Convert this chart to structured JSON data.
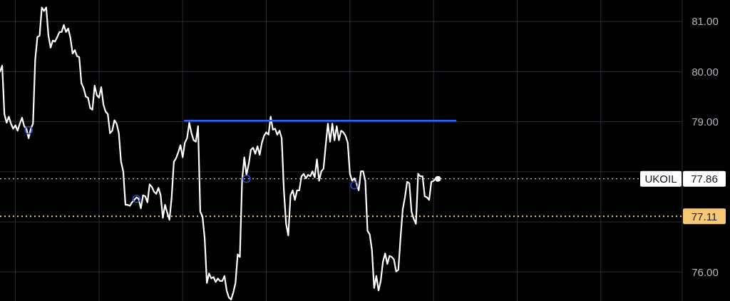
{
  "chart_data": {
    "type": "line",
    "categories": [
      null,
      null,
      null,
      null,
      null,
      null,
      null,
      null,
      null,
      null,
      null,
      null,
      null,
      null,
      null,
      null,
      null,
      null,
      null,
      null,
      null,
      null,
      null,
      null,
      null,
      null,
      null,
      null,
      null,
      null,
      null,
      null,
      null,
      null,
      null,
      null,
      null,
      null,
      null,
      null,
      null,
      null,
      null,
      null,
      null,
      null,
      null,
      null,
      null,
      null,
      null,
      null,
      null,
      null,
      null,
      null,
      null,
      null,
      null,
      null,
      null,
      null,
      null,
      null,
      null,
      null,
      null,
      null,
      null,
      null,
      null,
      null,
      null,
      null,
      null,
      null,
      null,
      null,
      null,
      null,
      null,
      null,
      null,
      null,
      null,
      null,
      null,
      null,
      null,
      null,
      null,
      null,
      null,
      null,
      null,
      null,
      null,
      null,
      null,
      null,
      null,
      null,
      null,
      null,
      null,
      null,
      null,
      null,
      null,
      null,
      null,
      null,
      null,
      null,
      null,
      null,
      null,
      null,
      null,
      null,
      null,
      null,
      null,
      null,
      null,
      null,
      null,
      null,
      null,
      null,
      null,
      null,
      null,
      null,
      null,
      null,
      null,
      null,
      null,
      null,
      null,
      null,
      null,
      null,
      null,
      null,
      null,
      null,
      null,
      null,
      null,
      null,
      null,
      null,
      null,
      null,
      null,
      null,
      null,
      null,
      null,
      null,
      null,
      null,
      null,
      null,
      null,
      null,
      null,
      null,
      null,
      null,
      null,
      null,
      null,
      null,
      null,
      null,
      null,
      null,
      null,
      null,
      null,
      null,
      null,
      null,
      null,
      null,
      null,
      null,
      null,
      null,
      null,
      null,
      null,
      null,
      null,
      null,
      null,
      null,
      null,
      null,
      null,
      null,
      null,
      null,
      null,
      null,
      null,
      null,
      null,
      null,
      null,
      null,
      null,
      null,
      null,
      null,
      null,
      null,
      null,
      null,
      null,
      null,
      null,
      null,
      null,
      null,
      null,
      null,
      null,
      null,
      null,
      null,
      null,
      null,
      null,
      null,
      null,
      null,
      null,
      null,
      null,
      null,
      null,
      null,
      null,
      null,
      null,
      null,
      null,
      null,
      null,
      null,
      null,
      null,
      null,
      null,
      null,
      null,
      null,
      null,
      null,
      null,
      null,
      null,
      null,
      null,
      null,
      null,
      null,
      null,
      null,
      null,
      null,
      null,
      null,
      null,
      null,
      null,
      null,
      null,
      null,
      null,
      null,
      null,
      null,
      null,
      null,
      null,
      null,
      null,
      null,
      null,
      null,
      null,
      null,
      null,
      null,
      null,
      null,
      null,
      null,
      null,
      null,
      null,
      null,
      null,
      null,
      null,
      null
    ],
    "ylim": [
      75.42,
      81.43
    ],
    "yticks": [
      {
        "value": 76,
        "label": "76.00"
      },
      {
        "value": 77,
        "label": null
      },
      {
        "value": 78,
        "label": null
      },
      {
        "value": 79,
        "label": "79.00"
      },
      {
        "value": 80,
        "label": "80.00"
      },
      {
        "value": 81,
        "label": "81.00"
      }
    ],
    "tick_labels": "y",
    "grid": true,
    "series": [
      {
        "type": "line",
        "color": "#ffffff",
        "marker": "none",
        "line_style": "solid",
        "values": [
          80.0,
          80.12,
          79.15,
          78.98,
          79.1,
          78.96,
          78.86,
          78.93,
          78.82,
          78.96,
          79.08,
          78.91,
          78.86,
          78.67,
          78.86,
          78.96,
          80.24,
          80.69,
          80.72,
          81.28,
          81.21,
          81.28,
          80.72,
          80.48,
          80.62,
          80.6,
          80.69,
          80.79,
          80.79,
          80.93,
          80.79,
          80.86,
          80.67,
          80.36,
          80.43,
          80.31,
          80.29,
          79.77,
          79.67,
          79.5,
          79.48,
          79.27,
          79.24,
          79.72,
          79.53,
          79.48,
          79.69,
          79.34,
          79.2,
          79.15,
          78.77,
          78.82,
          79.03,
          78.96,
          78.77,
          78.2,
          78.01,
          77.34,
          77.34,
          77.32,
          77.39,
          77.44,
          77.49,
          77.46,
          77.27,
          77.53,
          77.51,
          77.39,
          77.75,
          77.7,
          77.6,
          77.56,
          77.68,
          77.53,
          77.08,
          77.34,
          77.18,
          77.04,
          77.49,
          78.2,
          78.27,
          78.39,
          78.53,
          78.29,
          78.58,
          78.67,
          78.98,
          78.77,
          78.63,
          78.6,
          78.91,
          77.2,
          77.11,
          76.68,
          75.78,
          75.97,
          75.87,
          75.9,
          75.8,
          75.87,
          75.82,
          75.82,
          75.92,
          75.63,
          75.49,
          75.45,
          75.59,
          75.78,
          76.35,
          76.3,
          77.82,
          78.29,
          77.94,
          78.15,
          78.44,
          78.48,
          78.36,
          78.51,
          78.34,
          78.58,
          78.72,
          78.79,
          78.74,
          79.1,
          78.84,
          78.86,
          78.74,
          78.82,
          78.67,
          77.63,
          76.96,
          76.73,
          77.53,
          77.63,
          77.44,
          77.63,
          77.63,
          77.91,
          77.96,
          77.87,
          77.94,
          77.91,
          78.01,
          77.89,
          78.25,
          77.82,
          78.01,
          78.06,
          78.53,
          78.96,
          78.6,
          78.96,
          78.63,
          78.91,
          78.63,
          78.82,
          78.79,
          78.72,
          78.58,
          77.96,
          77.82,
          77.87,
          77.77,
          77.63,
          78.01,
          78.01,
          77.82,
          76.82,
          76.75,
          76.44,
          75.68,
          75.92,
          75.63,
          75.82,
          76.2,
          76.37,
          76.16,
          76.32,
          76.3,
          76.25,
          76.01,
          76.04,
          76.68,
          77.25,
          77.49,
          77.8,
          77.77,
          77.2,
          77.06,
          76.96,
          77.96,
          77.91,
          77.91,
          77.51,
          77.49,
          77.44,
          77.8,
          77.82,
          77.87,
          77.86,
          null,
          null,
          null,
          null,
          null,
          null,
          null,
          null,
          null,
          null,
          null,
          null,
          null,
          null,
          null,
          null,
          null,
          null,
          null,
          null,
          null,
          null,
          null,
          null,
          null,
          null,
          null,
          null,
          null,
          null,
          null,
          null,
          null,
          null,
          null,
          null,
          null,
          null,
          null,
          null,
          null,
          null,
          null,
          null,
          null,
          null,
          null,
          null,
          null,
          null,
          null,
          null,
          null,
          null,
          null,
          null,
          null,
          null,
          null,
          null,
          null,
          null,
          null,
          null,
          null,
          null,
          null,
          null,
          null,
          null,
          null,
          null,
          null,
          null,
          null,
          null,
          null,
          null,
          null,
          null,
          null,
          null,
          null,
          null,
          null,
          null,
          null,
          null,
          null,
          null,
          null,
          null,
          null,
          null,
          null,
          null,
          null,
          null,
          null,
          null,
          null,
          null,
          null,
          null,
          null,
          null,
          null,
          null,
          null,
          null,
          null
        ]
      },
      {
        "type": "scatter",
        "color": "#2f4fe0",
        "marker": "circle",
        "values": [
          null,
          null,
          null,
          null,
          null,
          null,
          null,
          null,
          null,
          null,
          null,
          null,
          null,
          78.83,
          null,
          null,
          null,
          null,
          null,
          null,
          null,
          null,
          null,
          null,
          null,
          null,
          null,
          null,
          null,
          null,
          null,
          null,
          null,
          null,
          null,
          null,
          null,
          null,
          null,
          null,
          null,
          null,
          null,
          null,
          null,
          null,
          null,
          null,
          null,
          null,
          null,
          null,
          null,
          null,
          null,
          null,
          null,
          null,
          null,
          null,
          null,
          null,
          77.46,
          null,
          null,
          null,
          null,
          null,
          null,
          null,
          null,
          null,
          null,
          null,
          null,
          null,
          null,
          null,
          null,
          null,
          null,
          null,
          null,
          null,
          null,
          null,
          null,
          null,
          null,
          null,
          null,
          null,
          null,
          null,
          null,
          null,
          null,
          null,
          null,
          null,
          null,
          null,
          null,
          null,
          null,
          null,
          null,
          null,
          null,
          null,
          null,
          null,
          77.86,
          null,
          null,
          null,
          null,
          null,
          null,
          null,
          null,
          null,
          null,
          null,
          null,
          null,
          null,
          null,
          null,
          null,
          null,
          null,
          null,
          null,
          null,
          null,
          null,
          null,
          null,
          null,
          null,
          null,
          null,
          null,
          null,
          null,
          null,
          null,
          null,
          null,
          null,
          null,
          null,
          null,
          null,
          null,
          null,
          null,
          null,
          null,
          null,
          77.73,
          null,
          null,
          null,
          null,
          null,
          null,
          null,
          null,
          null,
          null,
          null,
          null,
          null,
          null,
          null,
          null,
          null,
          null,
          null,
          null,
          null,
          null,
          null,
          null,
          null,
          null,
          null,
          null,
          null,
          null,
          null,
          null,
          null,
          null,
          null,
          null,
          null,
          null,
          null,
          null,
          null,
          null,
          null,
          null,
          null,
          null,
          null,
          null,
          null,
          null,
          null,
          null,
          null,
          null,
          null,
          null,
          null,
          null,
          null,
          null,
          null,
          null,
          null,
          null,
          null,
          null,
          null,
          null,
          null,
          null,
          null,
          null,
          null,
          null,
          null,
          null,
          null,
          null,
          null,
          null,
          null,
          null,
          null,
          null,
          null,
          null,
          null,
          null,
          null,
          null,
          null,
          null,
          null,
          null,
          null,
          null,
          null,
          null,
          null,
          null,
          null,
          null,
          null,
          null,
          null,
          null,
          null,
          null,
          null,
          null,
          null,
          null,
          null,
          null,
          null,
          null,
          null,
          null,
          null,
          null,
          null,
          null,
          null,
          null,
          null,
          null,
          null,
          null,
          null,
          null,
          null,
          null,
          null,
          null,
          null,
          null,
          null,
          null,
          null,
          null,
          null,
          null,
          null,
          null,
          null,
          null,
          null,
          null,
          null
        ]
      },
      {
        "type": "line",
        "color": "#2962ff",
        "marker": "none",
        "line_style": "solid",
        "values": [
          null,
          null,
          null,
          null,
          null,
          null,
          null,
          null,
          null,
          null,
          null,
          null,
          null,
          null,
          null,
          null,
          null,
          null,
          null,
          null,
          null,
          null,
          null,
          null,
          null,
          null,
          null,
          null,
          null,
          null,
          null,
          null,
          null,
          null,
          null,
          null,
          null,
          null,
          null,
          null,
          null,
          null,
          null,
          null,
          null,
          null,
          null,
          null,
          null,
          null,
          null,
          null,
          null,
          null,
          null,
          null,
          null,
          null,
          null,
          null,
          null,
          null,
          null,
          null,
          null,
          null,
          null,
          null,
          null,
          null,
          null,
          null,
          null,
          null,
          null,
          null,
          null,
          null,
          null,
          null,
          null,
          null,
          null,
          null,
          79.02,
          79.02,
          79.02,
          79.02,
          79.02,
          79.02,
          79.02,
          79.02,
          79.02,
          79.02,
          79.02,
          79.02,
          79.02,
          79.02,
          79.02,
          79.02,
          79.02,
          79.02,
          79.02,
          79.02,
          79.02,
          79.02,
          79.02,
          79.02,
          79.02,
          79.02,
          79.02,
          79.02,
          79.02,
          79.02,
          79.02,
          79.02,
          79.02,
          79.02,
          79.02,
          79.02,
          79.02,
          79.02,
          79.02,
          79.02,
          79.02,
          79.02,
          79.02,
          79.02,
          79.02,
          79.02,
          79.02,
          79.02,
          79.02,
          79.02,
          79.02,
          79.02,
          79.02,
          79.02,
          79.02,
          79.02,
          79.02,
          79.02,
          79.02,
          79.02,
          79.02,
          79.02,
          79.02,
          79.02,
          79.02,
          79.02,
          79.02,
          79.02,
          79.02,
          79.02,
          79.02,
          79.02,
          79.02,
          79.02,
          79.02,
          79.02,
          79.02,
          79.02,
          79.02,
          79.02,
          79.02,
          79.02,
          79.02,
          79.02,
          79.02,
          79.02,
          79.02,
          79.02,
          79.02,
          79.02,
          79.02,
          79.02,
          79.02,
          79.02,
          79.02,
          79.02,
          79.02,
          79.02,
          79.02,
          79.02,
          79.02,
          79.02,
          79.02,
          79.02,
          79.02,
          79.02,
          79.02,
          79.02,
          79.02,
          79.02,
          79.02,
          79.02,
          79.02,
          79.02,
          79.02,
          79.02,
          79.02,
          79.02,
          79.02,
          79.02,
          79.02,
          79.02,
          79.02,
          79.02,
          null,
          null,
          null,
          null,
          null,
          null,
          null,
          null,
          null,
          null,
          null,
          null,
          null,
          null,
          null,
          null,
          null,
          null,
          null,
          null,
          null,
          null,
          null,
          null,
          null,
          null,
          null,
          null,
          null,
          null,
          null,
          null,
          null,
          null,
          null,
          null,
          null,
          null,
          null,
          null,
          null,
          null,
          null,
          null,
          null,
          null,
          null,
          null,
          null,
          null,
          null,
          null,
          null,
          null,
          null,
          null,
          null,
          null,
          null,
          null,
          null,
          null,
          null,
          null,
          null,
          null,
          null,
          null,
          null,
          null,
          null,
          null,
          null,
          null,
          null,
          null,
          null,
          null,
          null,
          null,
          null,
          null,
          null,
          null,
          null,
          null,
          null,
          null,
          null,
          null,
          null,
          null,
          null,
          null,
          null,
          null,
          null,
          null,
          null,
          null,
          null,
          null,
          null
        ]
      }
    ],
    "ref_lines": [
      {
        "axis": "y",
        "value": 77.86,
        "label": "77.86",
        "color": "#ffffff",
        "line_style": "dotted"
      },
      {
        "axis": "y",
        "value": 77.11,
        "label": "77.11",
        "color": "#f7c873",
        "line_style": "dotted"
      }
    ],
    "annotations": [
      "UKOIL"
    ]
  }
}
